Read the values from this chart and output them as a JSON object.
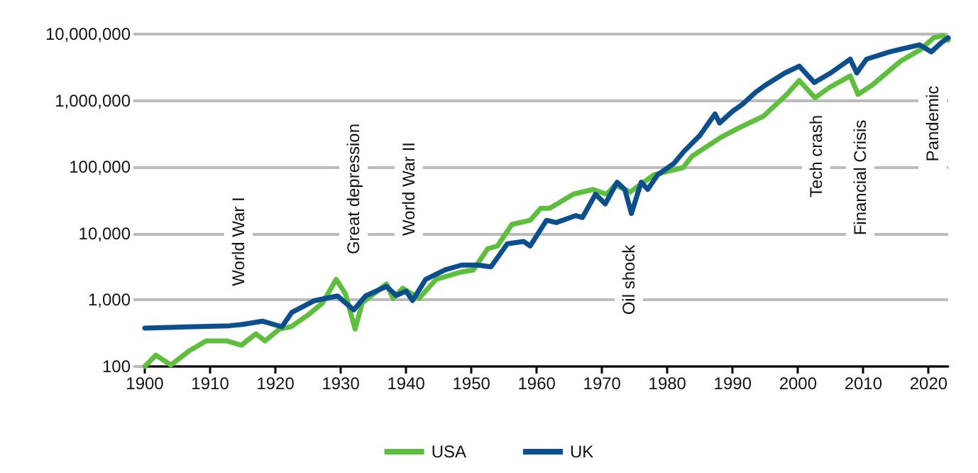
{
  "chart_data": {
    "type": "line",
    "log": "y",
    "grid": "y",
    "legend": "bottom",
    "marker": "none",
    "line_style": "solid",
    "xlim": [
      1900,
      2023
    ],
    "xticks": [
      1900,
      1910,
      1920,
      1930,
      1940,
      1950,
      1960,
      1970,
      1980,
      1990,
      2000,
      2010,
      2020
    ],
    "ylim": [
      100,
      10000000
    ],
    "yticks": [
      {
        "value": 100,
        "label": "100"
      },
      {
        "value": 1000,
        "label": "1,000"
      },
      {
        "value": 10000,
        "label": "10,000"
      },
      {
        "value": 100000,
        "label": "100,000"
      },
      {
        "value": 1000000,
        "label": "1,000,000"
      },
      {
        "value": 10000000,
        "label": "10,000,000"
      }
    ],
    "series": [
      {
        "name": "USA",
        "color": "#5dbf3b",
        "x": [
          1900,
          1901.7,
          1904,
          1906.8,
          1909.4,
          1912.6,
          1914.8,
          1917,
          1918.4,
          1920.6,
          1922.4,
          1925,
          1927.2,
          1929.3,
          1930.7,
          1932.2,
          1933.3,
          1937,
          1938,
          1939.5,
          1942,
          1944.6,
          1948.2,
          1950.3,
          1952.5,
          1954,
          1956.2,
          1959,
          1960.6,
          1962,
          1965.6,
          1968.6,
          1970.7,
          1972,
          1974.3,
          1978,
          1982.4,
          1983.8,
          1988.2,
          1991,
          1994.7,
          1998.3,
          2000.2,
          2002.6,
          2004.8,
          2008,
          2009.2,
          2011.3,
          2015.7,
          2018.7,
          2020.8,
          2022.2,
          2023
        ],
        "values": [
          100,
          148,
          105,
          172,
          242,
          242,
          209,
          310,
          242,
          365,
          396,
          596,
          900,
          2040,
          1250,
          365,
          910,
          1740,
          1060,
          1500,
          1060,
          2040,
          2600,
          2840,
          5900,
          6500,
          13700,
          15800,
          24000,
          24000,
          39000,
          46000,
          39000,
          54000,
          42000,
          77000,
          98000,
          146000,
          280000,
          390000,
          580000,
          1240000,
          2000000,
          1100000,
          1570000,
          2350000,
          1240000,
          1690000,
          3900000,
          5800000,
          8800000,
          9500000,
          8100000
        ]
      },
      {
        "name": "UK",
        "color": "#0b4f8f",
        "x": [
          1900,
          1913,
          1915,
          1918,
          1921,
          1922.5,
          1926,
          1929.5,
          1932,
          1933.8,
          1937,
          1938.5,
          1940,
          1941,
          1943,
          1946,
          1948.5,
          1951,
          1953,
          1955.5,
          1958,
          1959,
          1961.5,
          1963,
          1966,
          1967,
          1969,
          1970.5,
          1972.3,
          1973.5,
          1974.5,
          1976,
          1977,
          1978.5,
          1981,
          1982.5,
          1985,
          1987.3,
          1988,
          1990,
          1991.5,
          1993.5,
          1995,
          1998,
          2000.2,
          2002.5,
          2005,
          2008,
          2009,
          2010.5,
          2014,
          2018.6,
          2020.4,
          2022,
          2023
        ],
        "values": [
          378,
          410,
          430,
          480,
          396,
          650,
          980,
          1150,
          710,
          1150,
          1600,
          1170,
          1360,
          980,
          2040,
          2840,
          3350,
          3350,
          3150,
          7000,
          7600,
          6500,
          15800,
          14600,
          18600,
          17400,
          39000,
          28000,
          59000,
          46000,
          20000,
          59000,
          46000,
          76000,
          113000,
          170000,
          300000,
          630000,
          460000,
          690000,
          880000,
          1330000,
          1700000,
          2600000,
          3300000,
          1870000,
          2600000,
          4200000,
          2600000,
          4200000,
          5400000,
          6900000,
          5400000,
          7500000,
          8800000
        ]
      }
    ],
    "annotations": [
      "World War I",
      "Great depression",
      "World War II",
      "Oil shock",
      "Tech crash",
      "Financial Crisis",
      "Pandemic"
    ]
  }
}
